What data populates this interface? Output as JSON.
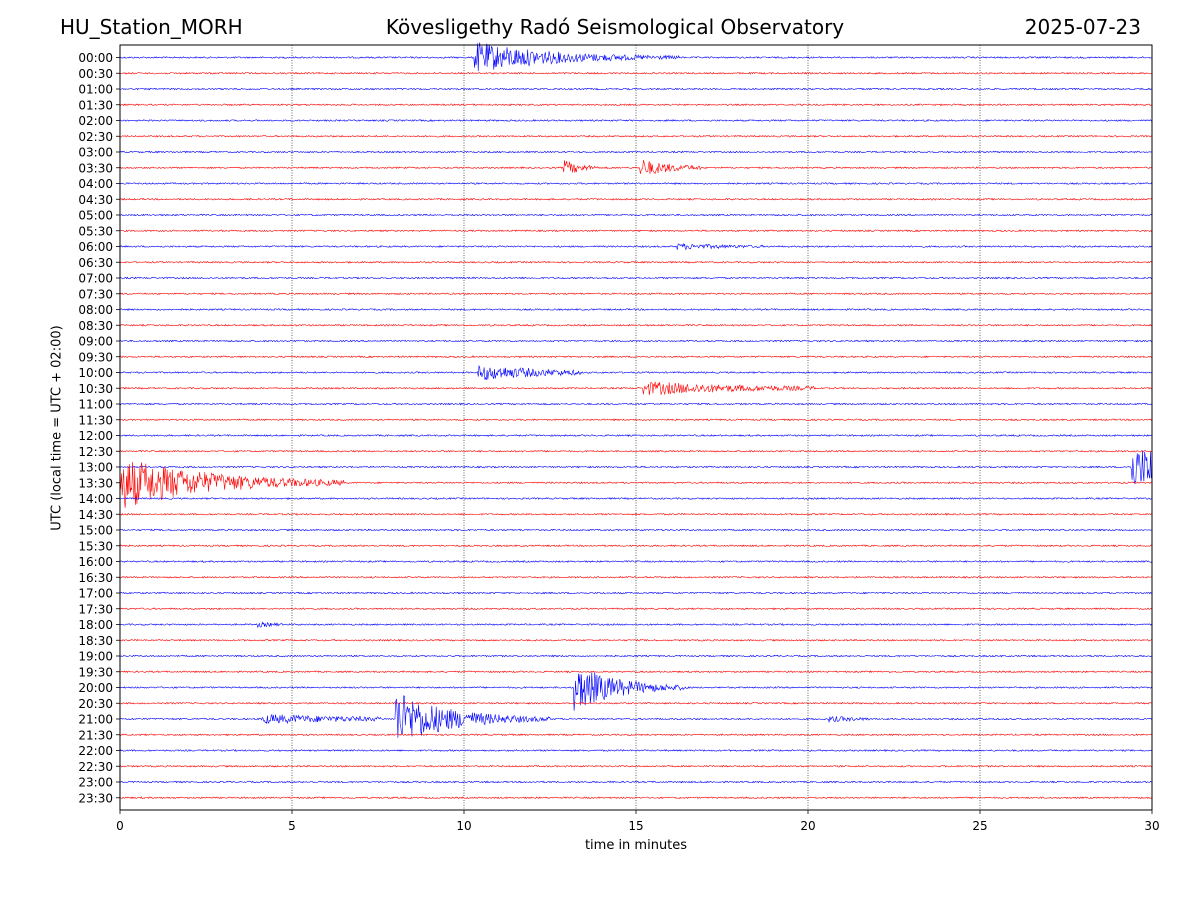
{
  "header": {
    "station": "HU_Station_MORH",
    "observatory": "Kövesligethy Radó Seismological Observatory",
    "date": "2025-07-23"
  },
  "chart_data": {
    "type": "line",
    "title": "Kövesligethy Radó Seismological Observatory",
    "xlabel": "time in minutes",
    "ylabel": "UTC (local time = UTC + 02:00)",
    "xlim": [
      0,
      30
    ],
    "x_ticks": [
      "0",
      "5",
      "10",
      "15",
      "20",
      "25",
      "30"
    ],
    "grid": "vertical dotted lines at each 5 minutes",
    "colors": {
      "even_traces": "#0000ff",
      "odd_traces": "#ff0000"
    },
    "traces": [
      "00:00",
      "00:30",
      "01:00",
      "01:30",
      "02:00",
      "02:30",
      "03:00",
      "03:30",
      "04:00",
      "04:30",
      "05:00",
      "05:30",
      "06:00",
      "06:30",
      "07:00",
      "07:30",
      "08:00",
      "08:30",
      "09:00",
      "09:30",
      "10:00",
      "10:30",
      "11:00",
      "11:30",
      "12:00",
      "12:30",
      "13:00",
      "13:30",
      "14:00",
      "14:30",
      "15:00",
      "15:30",
      "16:00",
      "16:30",
      "17:00",
      "17:30",
      "18:00",
      "18:30",
      "19:00",
      "19:30",
      "20:00",
      "20:30",
      "21:00",
      "21:30",
      "22:00",
      "22:30",
      "23:00",
      "23:30"
    ],
    "events": [
      {
        "trace": "00:00",
        "start_min": 10.3,
        "peak": 0.7,
        "decay_min": 2.2,
        "duration_min": 6.0
      },
      {
        "trace": "03:30",
        "start_min": 12.9,
        "peak": 0.35,
        "decay_min": 0.5,
        "duration_min": 1.0
      },
      {
        "trace": "03:30",
        "start_min": 15.1,
        "peak": 0.4,
        "decay_min": 0.9,
        "duration_min": 1.8
      },
      {
        "trace": "06:00",
        "start_min": 16.2,
        "peak": 0.12,
        "decay_min": 1.5,
        "duration_min": 2.5
      },
      {
        "trace": "10:00",
        "start_min": 10.4,
        "peak": 0.35,
        "decay_min": 2.0,
        "duration_min": 3.0
      },
      {
        "trace": "10:30",
        "start_min": 15.2,
        "peak": 0.3,
        "decay_min": 3.0,
        "duration_min": 5.0
      },
      {
        "trace": "13:30",
        "start_min": 0.0,
        "peak": 1.2,
        "decay_min": 2.5,
        "duration_min": 6.5
      },
      {
        "trace": "13:00",
        "start_min": 29.4,
        "peak": 0.9,
        "decay_min": 5.0,
        "duration_min": 0.6
      },
      {
        "trace": "18:00",
        "start_min": 4.0,
        "peak": 0.1,
        "decay_min": 0.5,
        "duration_min": 0.7
      },
      {
        "trace": "20:00",
        "start_min": 13.2,
        "peak": 1.1,
        "decay_min": 1.2,
        "duration_min": 3.3
      },
      {
        "trace": "21:00",
        "start_min": 4.1,
        "peak": 0.2,
        "decay_min": 3.0,
        "duration_min": 3.5
      },
      {
        "trace": "21:00",
        "start_min": 8.0,
        "peak": 1.3,
        "decay_min": 1.5,
        "duration_min": 4.5
      },
      {
        "trace": "21:00",
        "start_min": 20.6,
        "peak": 0.12,
        "decay_min": 0.8,
        "duration_min": 1.2
      }
    ]
  }
}
